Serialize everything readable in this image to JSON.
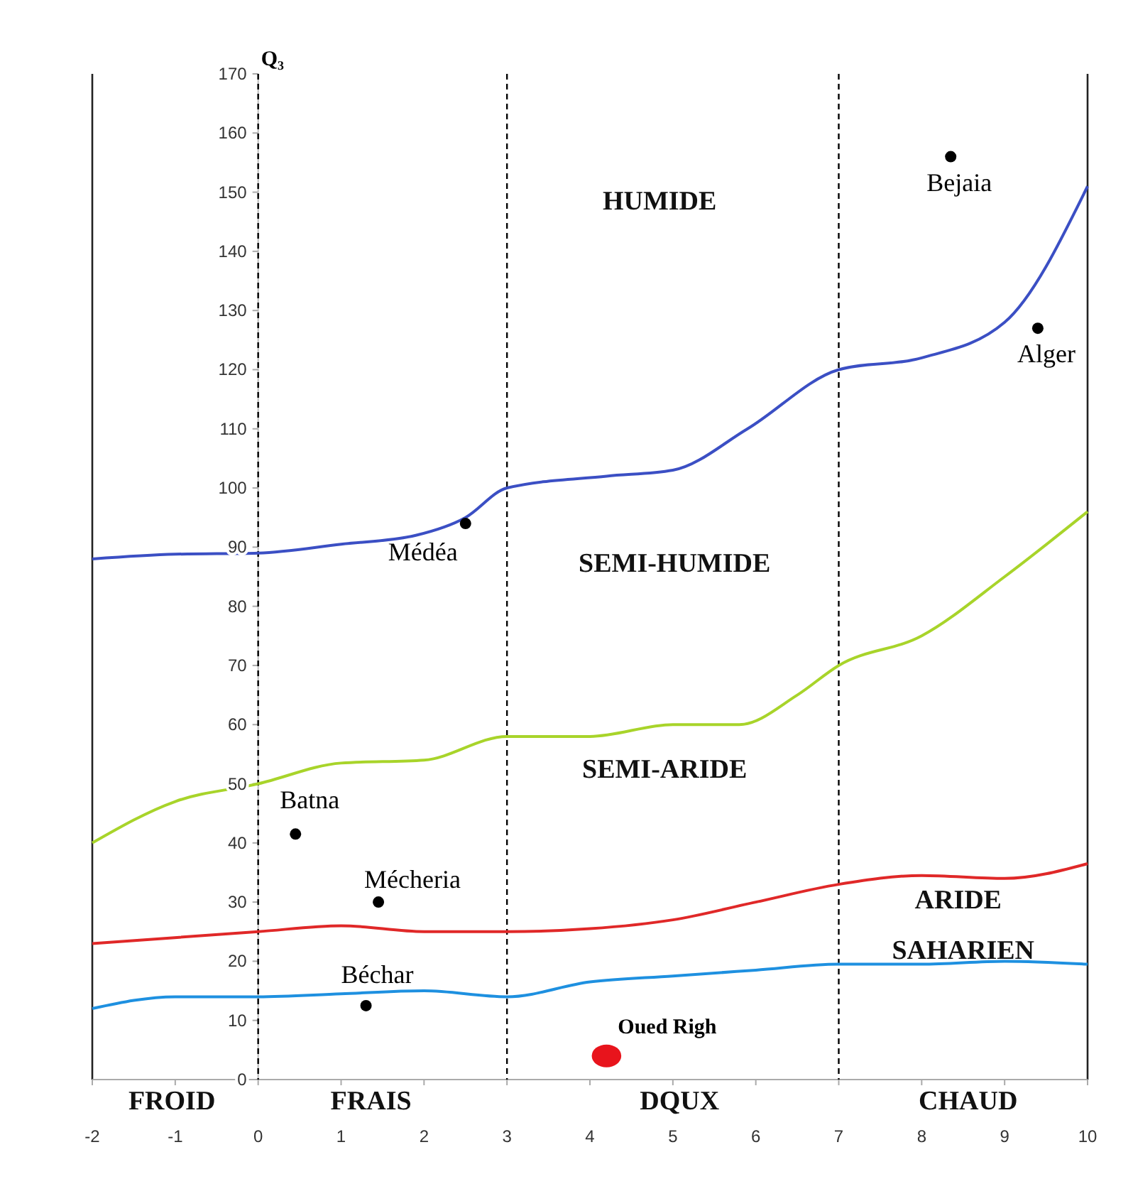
{
  "chart_data": {
    "type": "line",
    "ylabel": "Q₃",
    "xlim": [
      -2,
      10
    ],
    "xticks": [
      -2,
      -1,
      0,
      1,
      2,
      3,
      4,
      5,
      6,
      7,
      8,
      9,
      10
    ],
    "ylim": [
      0,
      170
    ],
    "yticks": [
      0,
      10,
      20,
      30,
      40,
      50,
      60,
      70,
      80,
      90,
      100,
      110,
      120,
      130,
      140,
      150,
      160,
      170
    ],
    "grid": false,
    "legend": false,
    "line_style": "solid",
    "series": [
      {
        "type": "line",
        "color": "#3b4fc4",
        "x": [
          -2,
          -1,
          0,
          1,
          1.9,
          2.5,
          3,
          4.2,
          5,
          5.9,
          7,
          8,
          9,
          10
        ],
        "values": [
          88,
          88.8,
          89,
          90.5,
          92,
          95,
          100,
          102,
          103,
          110,
          120,
          122,
          128,
          151
        ]
      },
      {
        "type": "line",
        "color": "#a8d42a",
        "x": [
          -2,
          -1,
          0,
          1,
          2,
          3,
          4,
          5,
          5.8,
          6.5,
          7,
          8,
          9,
          10
        ],
        "values": [
          40,
          47,
          50,
          53.5,
          54,
          58,
          58,
          60,
          60,
          65,
          70,
          75,
          85,
          96
        ]
      },
      {
        "type": "line",
        "color": "#e02828",
        "x": [
          -2,
          0,
          1,
          2,
          3,
          4,
          5,
          6,
          7,
          8,
          9,
          10
        ],
        "values": [
          23,
          25,
          26,
          25,
          25,
          25.5,
          27,
          30,
          33,
          34.5,
          34,
          36.5
        ]
      },
      {
        "type": "line",
        "color": "#1e90e0",
        "x": [
          -2,
          -1,
          0,
          1,
          2,
          3,
          4,
          5,
          6,
          7,
          8,
          9,
          10
        ],
        "values": [
          12,
          14,
          14,
          14.5,
          15,
          14,
          16.5,
          17.5,
          18.5,
          19.5,
          19.5,
          20,
          19.5
        ]
      },
      {
        "type": "scatter",
        "name": "Médéa",
        "color": "#000000",
        "marker": "circle",
        "x": [
          2.5
        ],
        "values": [
          94
        ]
      },
      {
        "type": "scatter",
        "name": "Bejaia",
        "color": "#000000",
        "marker": "circle",
        "x": [
          8.35
        ],
        "values": [
          156
        ]
      },
      {
        "type": "scatter",
        "name": "Alger",
        "color": "#000000",
        "marker": "circle",
        "x": [
          9.4
        ],
        "values": [
          127
        ]
      },
      {
        "type": "scatter",
        "name": "Batna",
        "color": "#000000",
        "marker": "circle",
        "x": [
          0.45
        ],
        "values": [
          41.5
        ]
      },
      {
        "type": "scatter",
        "name": "Mécheria",
        "color": "#000000",
        "marker": "circle",
        "x": [
          1.45
        ],
        "values": [
          30
        ]
      },
      {
        "type": "scatter",
        "name": "Béchar",
        "color": "#000000",
        "marker": "circle",
        "x": [
          1.3
        ],
        "values": [
          12.5
        ]
      },
      {
        "type": "scatter",
        "name": "Oued Righ",
        "color": "#e8141c",
        "marker": "circle",
        "x": [
          4.2
        ],
        "values": [
          4
        ]
      }
    ],
    "ref_lines": [
      {
        "axis": "x",
        "value": 0,
        "line_style": "dashed",
        "color": "#000000"
      },
      {
        "axis": "x",
        "value": 3,
        "line_style": "dashed",
        "color": "#000000"
      },
      {
        "axis": "x",
        "value": 7,
        "line_style": "dashed",
        "color": "#000000"
      }
    ],
    "annotations": [
      "HUMIDE",
      "SEMI-HUMIDE",
      "SEMI-ARIDE",
      "ARIDE",
      "SAHARIEN",
      "FROID",
      "FRAIS",
      "DQUX",
      "CHAUD"
    ]
  }
}
